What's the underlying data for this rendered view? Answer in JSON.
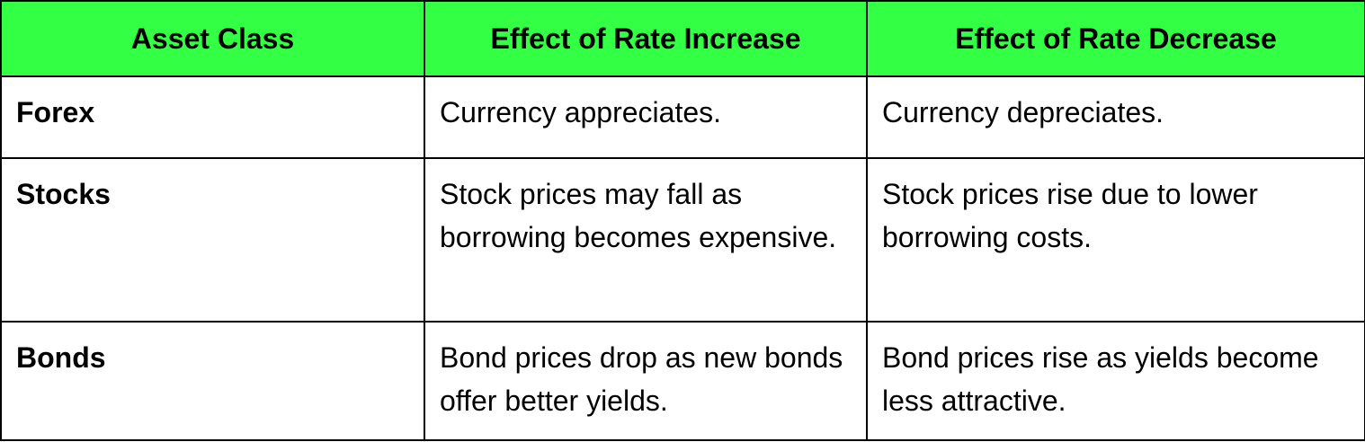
{
  "table": {
    "header_bg": "#33ff44",
    "headers": [
      "Asset Class",
      "Effect of Rate Increase",
      "Effect of Rate Decrease"
    ],
    "rows": [
      {
        "asset": "Forex",
        "increase": "Currency appreciates.",
        "decrease": "Currency depreciates."
      },
      {
        "asset": "Stocks",
        "increase": "Stock prices may fall as borrowing becomes expensive.",
        "decrease": "Stock prices rise due to lower borrowing costs."
      },
      {
        "asset": "Bonds",
        "increase": "Bond prices drop as new bonds offer better yields.",
        "decrease": "Bond prices rise as yields become less attractive."
      }
    ]
  }
}
